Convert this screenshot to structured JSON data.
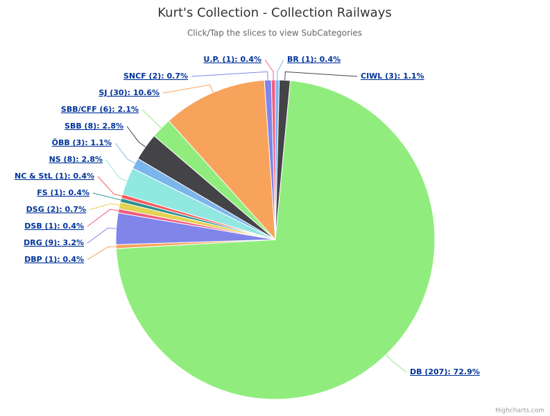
{
  "chart_data": {
    "type": "pie",
    "title": "Kurt's Collection - Collection Railways",
    "subtitle": "Click/Tap the slices to view SubCategories",
    "credits": "Highcharts.com",
    "values": [
      0.4,
      1.1,
      72.9,
      0.4,
      3.2,
      0.4,
      0.7,
      0.4,
      0.4,
      2.8,
      1.1,
      2.8,
      2.1,
      10.6,
      0.7,
      0.4
    ],
    "value_labels": [
      "BR (1): 0.4%",
      "CIWL (3): 1.1%",
      "DB (207): 72.9%",
      "DBP (1): 0.4%",
      "DRG (9): 3.2%",
      "DSB (1): 0.4%",
      "DSG (2): 0.7%",
      "FS (1): 0.4%",
      "NC & StL (1): 0.4%",
      "NS (8): 2.8%",
      "ÖBB (3): 1.1%",
      "SBB (8): 2.8%",
      "SBB/CFF (6): 2.1%",
      "SJ (30): 10.6%",
      "SNCF (2): 0.7%",
      "U.P. (1): 0.4%"
    ],
    "colors": [
      "#7cb5ec",
      "#434348",
      "#90ed7d",
      "#f7a35c",
      "#8085e9",
      "#f15c80",
      "#e4d354",
      "#2b908f",
      "#f45b5b",
      "#91e8e1",
      "#7cb5ec",
      "#434348",
      "#90ed7d",
      "#f7a35c",
      "#8085e9",
      "#f15c80"
    ]
  }
}
